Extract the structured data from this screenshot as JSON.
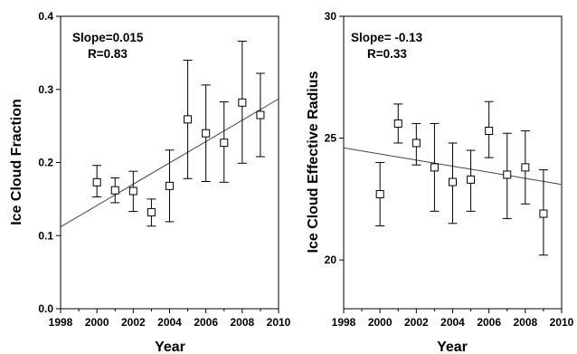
{
  "chart_data": [
    {
      "type": "scatter",
      "xlabel": "Year",
      "ylabel": "Ice Cloud Fraction",
      "xlim": [
        1998,
        2010
      ],
      "ylim": [
        0.0,
        0.4
      ],
      "xticks": [
        "1998",
        "2000",
        "2002",
        "2004",
        "2006",
        "2008",
        "2010"
      ],
      "yticks": [
        "0.0",
        "0.1",
        "0.2",
        "0.3",
        "0.4"
      ],
      "annotations": [
        "Slope=0.015",
        "R=0.83"
      ],
      "points": [
        {
          "x": 2000,
          "y": 0.173,
          "lo": 0.153,
          "hi": 0.196
        },
        {
          "x": 2001,
          "y": 0.162,
          "lo": 0.145,
          "hi": 0.179
        },
        {
          "x": 2002,
          "y": 0.161,
          "lo": 0.133,
          "hi": 0.188
        },
        {
          "x": 2003,
          "y": 0.132,
          "lo": 0.113,
          "hi": 0.15
        },
        {
          "x": 2004,
          "y": 0.168,
          "lo": 0.119,
          "hi": 0.217
        },
        {
          "x": 2005,
          "y": 0.259,
          "lo": 0.178,
          "hi": 0.34
        },
        {
          "x": 2006,
          "y": 0.24,
          "lo": 0.174,
          "hi": 0.306
        },
        {
          "x": 2007,
          "y": 0.227,
          "lo": 0.173,
          "hi": 0.283
        },
        {
          "x": 2008,
          "y": 0.282,
          "lo": 0.199,
          "hi": 0.366
        },
        {
          "x": 2009,
          "y": 0.265,
          "lo": 0.208,
          "hi": 0.322
        }
      ],
      "trend": {
        "x": [
          1998,
          2010
        ],
        "y": [
          0.112,
          0.287
        ]
      }
    },
    {
      "type": "scatter",
      "xlabel": "Year",
      "ylabel": "Ice Cloud Effective Radius",
      "xlim": [
        1998,
        2010
      ],
      "ylim": [
        18.0,
        30.0
      ],
      "xticks": [
        "1998",
        "2000",
        "2002",
        "2004",
        "2006",
        "2008",
        "2010"
      ],
      "yticks": [
        "20",
        "25",
        "30"
      ],
      "annotations": [
        "Slope= -0.13",
        "R=0.33"
      ],
      "points": [
        {
          "x": 2000,
          "y": 22.7,
          "lo": 21.4,
          "hi": 24.0
        },
        {
          "x": 2001,
          "y": 25.6,
          "lo": 24.8,
          "hi": 26.4
        },
        {
          "x": 2002,
          "y": 24.8,
          "lo": 23.9,
          "hi": 25.6
        },
        {
          "x": 2003,
          "y": 23.8,
          "lo": 22.0,
          "hi": 25.6
        },
        {
          "x": 2004,
          "y": 23.2,
          "lo": 21.5,
          "hi": 24.8
        },
        {
          "x": 2005,
          "y": 23.3,
          "lo": 22.0,
          "hi": 24.5
        },
        {
          "x": 2006,
          "y": 25.3,
          "lo": 24.2,
          "hi": 26.5
        },
        {
          "x": 2007,
          "y": 23.5,
          "lo": 21.7,
          "hi": 25.2
        },
        {
          "x": 2008,
          "y": 23.8,
          "lo": 22.3,
          "hi": 25.3
        },
        {
          "x": 2009,
          "y": 21.9,
          "lo": 20.2,
          "hi": 23.7
        }
      ],
      "trend": {
        "x": [
          1998,
          2010
        ],
        "y": [
          24.6,
          23.1
        ]
      }
    }
  ]
}
